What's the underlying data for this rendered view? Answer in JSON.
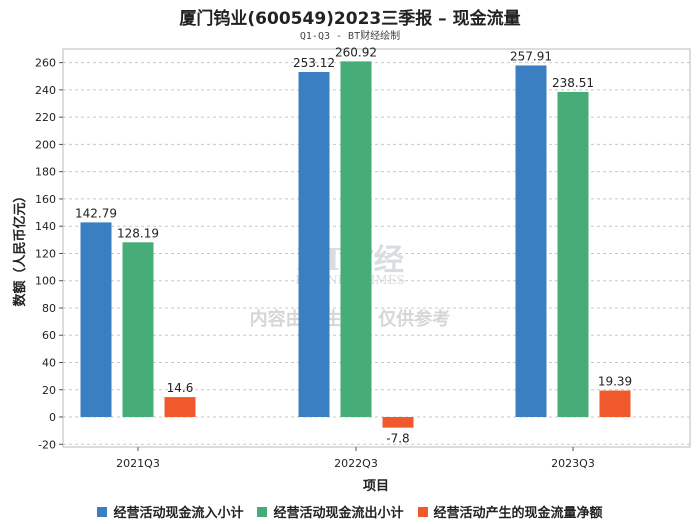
{
  "title": "厦门钨业(600549)2023三季报 – 现金流量",
  "subtitle": "Q1-Q3 - BT财经绘制",
  "watermark": {
    "logo_text": "BT财经",
    "logo_sub": "BUSINESSTIMES",
    "notice": "内容由AI生成，仅供参考"
  },
  "chart_data": {
    "type": "bar",
    "title": "厦门钨业(600549)2023三季报 – 现金流量",
    "xlabel": "项目",
    "ylabel": "数额（人民币亿元）",
    "ylim": [
      -22,
      270
    ],
    "yticks": [
      -20,
      0,
      20,
      40,
      60,
      80,
      100,
      120,
      140,
      160,
      180,
      200,
      220,
      240,
      260
    ],
    "categories": [
      "2021Q3",
      "2022Q3",
      "2023Q3"
    ],
    "series": [
      {
        "name": "经营活动现金流入小计",
        "color": "#3a7fc1",
        "values": [
          142.79,
          253.12,
          257.91
        ]
      },
      {
        "name": "经营活动现金流出小计",
        "color": "#46ad78",
        "values": [
          128.19,
          260.92,
          238.51
        ]
      },
      {
        "name": "经营活动产生的现金流量净额",
        "color": "#f0592b",
        "values": [
          14.6,
          -7.8,
          19.39
        ]
      }
    ],
    "grid": true,
    "legend": "bottom"
  }
}
